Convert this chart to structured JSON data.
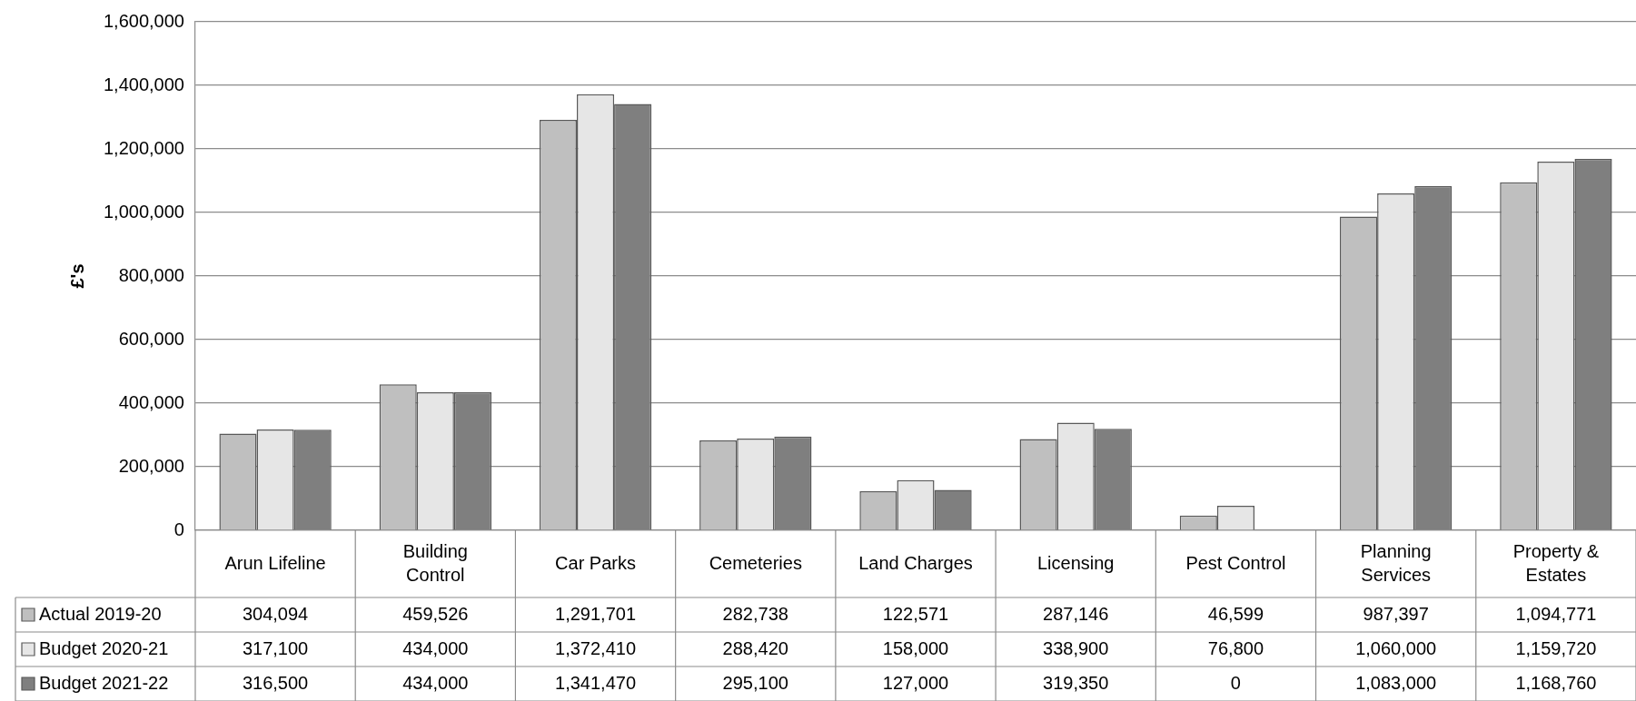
{
  "chart_data": {
    "type": "bar",
    "ylabel": "£'s",
    "categories": [
      "Arun Lifeline",
      "Building Control",
      "Car Parks",
      "Cemeteries",
      "Land Charges",
      "Licensing",
      "Pest Control",
      "Planning Services",
      "Property & Estates"
    ],
    "series": [
      {
        "name": "Actual 2019-20",
        "color": "#bfbfbf",
        "values": [
          304094,
          459526,
          1291701,
          282738,
          122571,
          287146,
          46599,
          987397,
          1094771
        ],
        "value_labels": [
          "304,094",
          "459,526",
          "1,291,701",
          "282,738",
          "122,571",
          "287,146",
          "46,599",
          "987,397",
          "1,094,771"
        ]
      },
      {
        "name": "Budget 2020-21",
        "color": "#e6e6e6",
        "values": [
          317100,
          434000,
          1372410,
          288420,
          158000,
          338900,
          76800,
          1060000,
          1159720
        ],
        "value_labels": [
          "317,100",
          "434,000",
          "1,372,410",
          "288,420",
          "158,000",
          "338,900",
          "76,800",
          "1,060,000",
          "1,159,720"
        ]
      },
      {
        "name": "Budget 2021-22",
        "color": "#7f7f7f",
        "values": [
          316500,
          434000,
          1341470,
          295100,
          127000,
          319350,
          0,
          1083000,
          1168760
        ],
        "value_labels": [
          "316,500",
          "434,000",
          "1,341,470",
          "295,100",
          "127,000",
          "319,350",
          "0",
          "1,083,000",
          "1,168,760"
        ]
      }
    ],
    "ylim": [
      0,
      1600000
    ],
    "yticks": [
      {
        "value": 0,
        "label": "0"
      },
      {
        "value": 200000,
        "label": "200,000"
      },
      {
        "value": 400000,
        "label": "400,000"
      },
      {
        "value": 600000,
        "label": "600,000"
      },
      {
        "value": 800000,
        "label": "800,000"
      },
      {
        "value": 1000000,
        "label": "1,000,000"
      },
      {
        "value": 1200000,
        "label": "1,200,000"
      },
      {
        "value": 1400000,
        "label": "1,400,000"
      },
      {
        "value": 1600000,
        "label": "1,600,000"
      }
    ],
    "grid": "y",
    "legend": "bottom"
  }
}
